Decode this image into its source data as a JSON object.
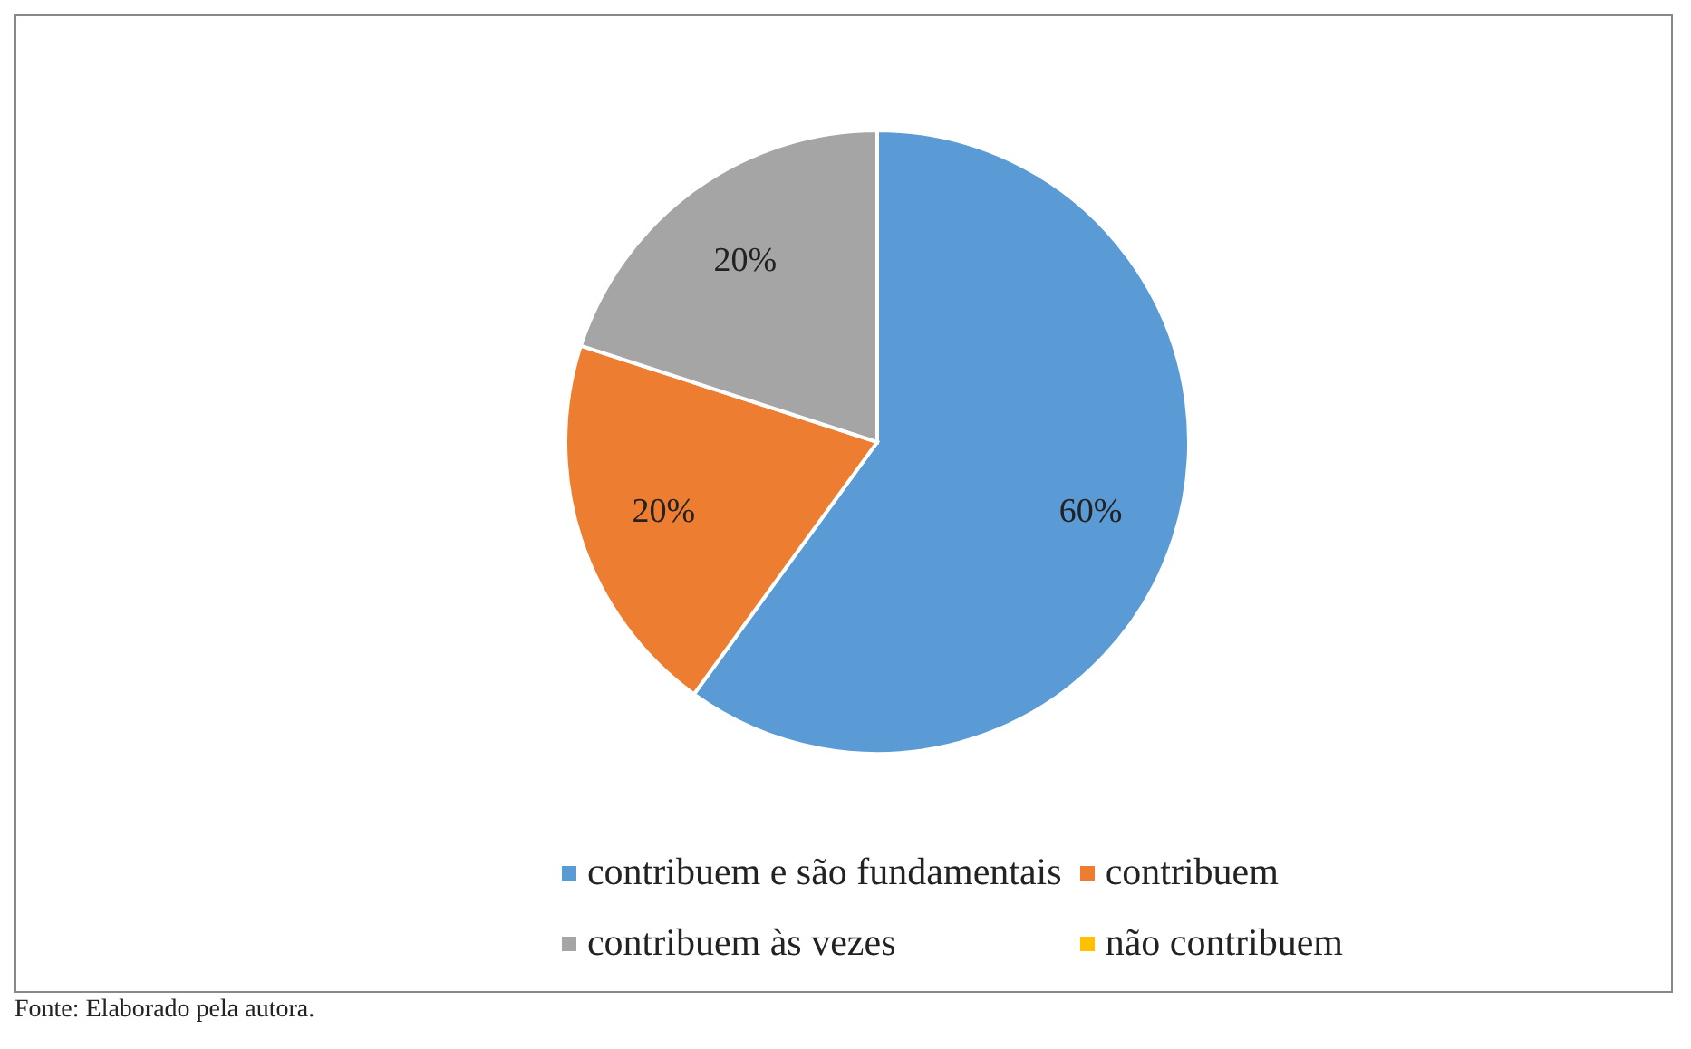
{
  "chart_data": {
    "type": "pie",
    "categories": [
      "contribuem e são fundamentais",
      "contribuem",
      "contribuem às vezes",
      "não contribuem"
    ],
    "values": [
      60,
      20,
      20,
      0
    ],
    "colors": [
      "#5b9bd5",
      "#ed7d31",
      "#a5a5a5",
      "#ffc000"
    ],
    "value_labels": [
      "60%",
      "20%",
      "20%",
      null
    ],
    "legend": "bottom",
    "annotations": [
      "Fonte: Elaborado pela autora."
    ]
  }
}
